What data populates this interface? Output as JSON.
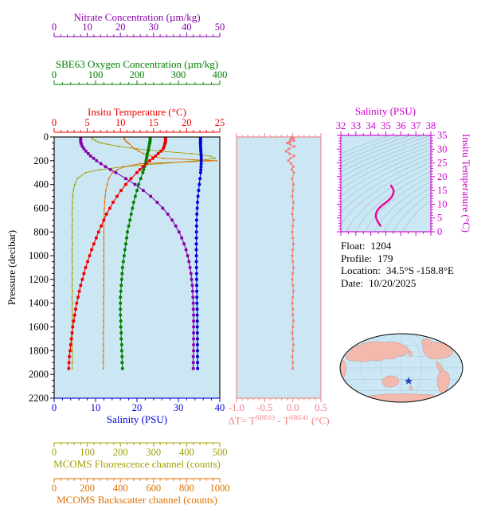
{
  "colors": {
    "panel_bg": "#cbe7f3",
    "contour": "#9dc4d4",
    "frame": "#000000",
    "land": "#f3b9ad",
    "map_ocean": "#cbe7f3",
    "map_grid": "#8fb6c2",
    "star": "#2244cc",
    "delta_t": "#f08080",
    "ts_axis": "#cc00cc",
    "ts_curve": "#ee0099"
  },
  "axes": {
    "nitrate": {
      "title": "Nitrate Concentration (µm/kg)",
      "range": [
        0,
        50
      ],
      "ticks": [
        0,
        10,
        20,
        30,
        40,
        50
      ],
      "minor": 2,
      "color": "#8800aa"
    },
    "oxygen": {
      "title": "SBE63 Oxygen Concentration (µm/kg)",
      "range": [
        0,
        400
      ],
      "ticks": [
        0,
        100,
        200,
        300,
        400
      ],
      "minor": 20,
      "color": "#008000"
    },
    "temperature": {
      "title": "Insitu Temperature (°C)",
      "range": [
        0,
        25
      ],
      "ticks": [
        0,
        5,
        10,
        15,
        20,
        25
      ],
      "minor": 1,
      "color": "#ee0000"
    },
    "pressure": {
      "title": "Pressure (decibar)",
      "range": [
        0,
        2200
      ],
      "ticks": [
        0,
        200,
        400,
        600,
        800,
        1000,
        1200,
        1400,
        1600,
        1800,
        2000,
        2200
      ],
      "minor": 50,
      "color": "#000000"
    },
    "salinity": {
      "title": "Salinity (PSU)",
      "range": [
        0,
        40
      ],
      "ticks": [
        0,
        10,
        20,
        30,
        40
      ],
      "minor": 2,
      "color": "#0000dd"
    },
    "fluorescence": {
      "title": "MCOMS Fluorescence channel (counts)",
      "range": [
        0,
        500
      ],
      "ticks": [
        0,
        100,
        200,
        300,
        400,
        500
      ],
      "minor": 20,
      "color": "#a0a000"
    },
    "backscatter": {
      "title": "MCOMS Backscatter channel (counts)",
      "range": [
        0,
        1000
      ],
      "ticks": [
        0,
        200,
        400,
        600,
        800,
        1000
      ],
      "minor": 40,
      "color": "#e07000"
    },
    "delta_t": {
      "t1": "ΔT= T",
      "sup1": "SBE63",
      "t2": " - T",
      "sup2": "SBE41",
      "t3": " (°C)",
      "range": [
        -1.0,
        0.5
      ],
      "ticks": [
        -1.0,
        -0.5,
        0.0,
        0.5
      ],
      "tick_labels": [
        "-1.0",
        "-0.5",
        "0.0",
        "0.5"
      ],
      "minor": 0.1,
      "color": "#f08080"
    },
    "ts_salinity": {
      "title": "Salinity (PSU)",
      "range": [
        32,
        38
      ],
      "ticks": [
        32,
        33,
        34,
        35,
        36,
        37,
        38
      ],
      "minor": 0.5,
      "color": "#cc00cc"
    },
    "ts_temperature": {
      "title": "Insitu Temperature (°C)",
      "range": [
        0,
        35
      ],
      "ticks": [
        0,
        5,
        10,
        15,
        20,
        25,
        30,
        35
      ],
      "minor": 1,
      "color": "#cc00cc"
    }
  },
  "metadata": {
    "float_label": "Float:",
    "float_value": "1204",
    "profile_label": "Profile:",
    "profile_value": "179",
    "location_label": "Location:",
    "location_value": "34.5°S  -158.8°E",
    "date_label": "Date:",
    "date_value": "10/20/2025"
  },
  "chart_data": [
    {
      "name": "pressure-profiles",
      "type": "line",
      "ylabel": "Pressure (decibar)",
      "ylim": [
        0,
        2200
      ],
      "y_reversed": true,
      "pressure": [
        0,
        10,
        20,
        30,
        40,
        50,
        60,
        80,
        100,
        120,
        140,
        160,
        180,
        200,
        225,
        250,
        275,
        300,
        350,
        400,
        450,
        500,
        550,
        600,
        650,
        700,
        750,
        800,
        850,
        900,
        950,
        1000,
        1050,
        1100,
        1150,
        1200,
        1250,
        1300,
        1350,
        1400,
        1450,
        1500,
        1550,
        1600,
        1650,
        1700,
        1750,
        1800,
        1850,
        1900,
        1950
      ],
      "series": [
        {
          "name": "Insitu Temperature",
          "axis": "temperature",
          "units": "°C",
          "values": [
            16.8,
            16.8,
            16.8,
            16.8,
            16.8,
            16.75,
            16.7,
            16.6,
            16.45,
            16.1,
            15.7,
            15.3,
            14.9,
            14.4,
            13.9,
            13.4,
            12.95,
            12.5,
            11.6,
            10.8,
            10.1,
            9.5,
            8.9,
            8.4,
            7.9,
            7.5,
            7.1,
            6.7,
            6.35,
            6.0,
            5.65,
            5.35,
            5.05,
            4.75,
            4.5,
            4.25,
            4.0,
            3.8,
            3.6,
            3.4,
            3.25,
            3.1,
            2.95,
            2.8,
            2.7,
            2.6,
            2.5,
            2.4,
            2.3,
            2.25,
            2.2
          ]
        },
        {
          "name": "Salinity",
          "axis": "salinity",
          "units": "PSU",
          "values": [
            35.35,
            35.35,
            35.35,
            35.35,
            35.35,
            35.35,
            35.35,
            35.36,
            35.38,
            35.42,
            35.46,
            35.5,
            35.52,
            35.52,
            35.5,
            35.46,
            35.42,
            35.37,
            35.22,
            35.05,
            34.88,
            34.73,
            34.62,
            34.53,
            34.46,
            34.41,
            34.38,
            34.36,
            34.34,
            34.33,
            34.33,
            34.34,
            34.35,
            34.37,
            34.39,
            34.41,
            34.43,
            34.45,
            34.47,
            34.49,
            34.51,
            34.53,
            34.55,
            34.56,
            34.58,
            34.59,
            34.6,
            34.61,
            34.62,
            34.63,
            34.64
          ]
        },
        {
          "name": "SBE63 Oxygen Concentration",
          "axis": "oxygen",
          "units": "µm/kg",
          "values": [
            232,
            232,
            232,
            232,
            231,
            231,
            230,
            229,
            228,
            227,
            225,
            224,
            223,
            222,
            220,
            218,
            216,
            214,
            209,
            204,
            200,
            196,
            192,
            189,
            186,
            183,
            180,
            177,
            175,
            173,
            171,
            169,
            167,
            165,
            164,
            163,
            162,
            161,
            160,
            160,
            160,
            160,
            161,
            161,
            162,
            162,
            163,
            163,
            164,
            164,
            165
          ]
        },
        {
          "name": "Nitrate Concentration",
          "axis": "nitrate",
          "units": "µm/kg",
          "values": [
            8.0,
            8.0,
            8.0,
            8.0,
            8.0,
            8.1,
            8.2,
            8.5,
            9.0,
            9.6,
            10.3,
            11.0,
            11.9,
            12.8,
            14.1,
            15.5,
            17.0,
            18.6,
            21.6,
            24.4,
            26.9,
            29.1,
            31.1,
            32.8,
            34.3,
            35.6,
            36.7,
            37.7,
            38.5,
            39.2,
            39.8,
            40.3,
            40.7,
            41.0,
            41.3,
            41.5,
            41.7,
            41.8,
            41.9,
            42.0,
            42.0,
            42.1,
            42.1,
            42.1,
            42.1,
            42.1,
            42.1,
            42.1,
            42.0,
            42.0,
            42.0
          ]
        },
        {
          "name": "MCOMS Fluorescence",
          "axis": "fluorescence",
          "units": "counts",
          "values": [
            112,
            114,
            118,
            124,
            132,
            142,
            158,
            195,
            250,
            325,
            415,
            470,
            485,
            430,
            320,
            210,
            140,
            96,
            70,
            62,
            58,
            56,
            55,
            55,
            54,
            55,
            54,
            55,
            54,
            55,
            54,
            55,
            54,
            55,
            54,
            55,
            54,
            55,
            54,
            55,
            54,
            55,
            54,
            55,
            54,
            55,
            54,
            55,
            54,
            55,
            54
          ]
        },
        {
          "name": "MCOMS Backscatter",
          "axis": "backscatter",
          "units": "counts",
          "values": [
            420,
            422,
            425,
            430,
            438,
            446,
            455,
            470,
            488,
            510,
            540,
            585,
            660,
            980,
            520,
            425,
            382,
            352,
            330,
            320,
            312,
            308,
            305,
            303,
            302,
            301,
            300,
            300,
            299,
            300,
            299,
            300,
            299,
            300,
            299,
            300,
            299,
            300,
            299,
            298,
            299,
            298,
            299,
            298,
            297,
            298,
            297,
            298,
            297,
            296,
            297
          ]
        }
      ]
    },
    {
      "name": "delta-t",
      "type": "line",
      "xlabel": "ΔT = T^SBE63 - T^SBE41 (°C)",
      "xlim": [
        -1.0,
        0.5
      ],
      "values": [
        -0.02,
        0.01,
        -0.04,
        0.02,
        -0.06,
        -0.1,
        -0.05,
        0.03,
        -0.07,
        -0.12,
        -0.06,
        0.02,
        -0.04,
        -0.08,
        -0.03,
        0.01,
        -0.02,
        0.02,
        -0.01,
        0.01,
        0.0,
        -0.01,
        0.01,
        0.0,
        -0.01,
        0.01,
        0.0,
        -0.01,
        0.0,
        0.01,
        0.0,
        -0.01,
        0.0,
        0.01,
        0.0,
        -0.01,
        0.0,
        0.01,
        0.0,
        -0.01,
        0.0,
        0.0,
        0.01,
        0.0,
        -0.01,
        0.0,
        0.01,
        0.0,
        -0.01,
        0.0,
        0.0
      ]
    },
    {
      "name": "ts-diagram",
      "type": "line",
      "xlabel": "Salinity (PSU)",
      "ylabel": "Insitu Temperature (°C)",
      "xlim": [
        32,
        38
      ],
      "ylim": [
        0,
        35
      ],
      "source": "pressure-profiles",
      "contours": {
        "label": "sigma-theta isopycnals",
        "min": 20,
        "max": 29,
        "step": 0.5
      }
    },
    {
      "name": "world-map",
      "type": "map",
      "star": {
        "lat": -34.5,
        "lon": -158.8
      }
    }
  ]
}
